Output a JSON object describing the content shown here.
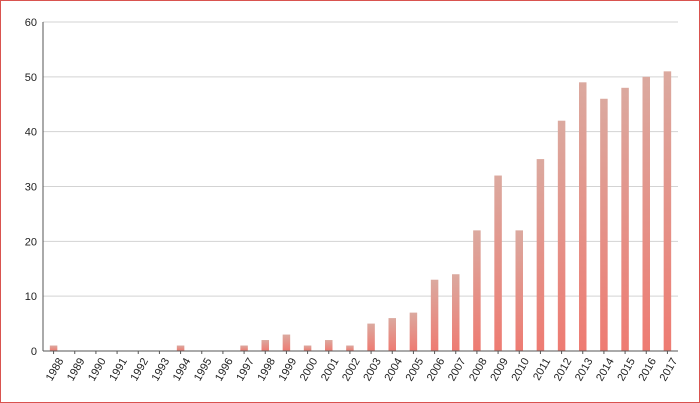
{
  "chart_data": {
    "type": "bar",
    "categories": [
      "1988",
      "1989",
      "1990",
      "1991",
      "1992",
      "1993",
      "1994",
      "1995",
      "1996",
      "1997",
      "1998",
      "1999",
      "2000",
      "2001",
      "2002",
      "2003",
      "2004",
      "2005",
      "2006",
      "2007",
      "2008",
      "2009",
      "2010",
      "2011",
      "2012",
      "2013",
      "2014",
      "2015",
      "2016",
      "2017"
    ],
    "values": [
      1,
      0,
      0,
      0,
      0,
      0,
      1,
      0,
      0,
      1,
      2,
      3,
      1,
      2,
      1,
      5,
      6,
      7,
      13,
      14,
      22,
      32,
      22,
      35,
      42,
      49,
      46,
      48,
      50,
      51
    ],
    "title": "",
    "xlabel": "",
    "ylabel": "",
    "ylim": [
      0,
      60
    ],
    "yticks": [
      0,
      10,
      20,
      30,
      40,
      50,
      60
    ],
    "grid": true,
    "legend": "none",
    "colors": {
      "bar_top": "#dba99f",
      "bar_bottom": "#ee7b72",
      "border": "#d9534f"
    }
  }
}
